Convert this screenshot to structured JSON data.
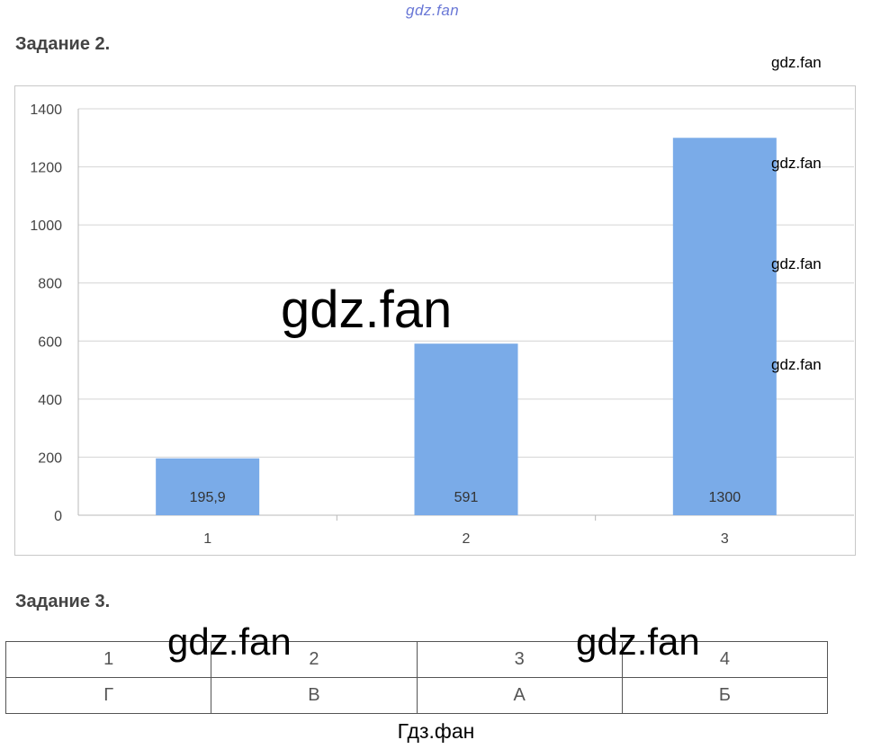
{
  "watermarks": {
    "top": "gdz.fan",
    "right1": "gdz.fan",
    "right2": "gdz.fan",
    "right3": "gdz.fan",
    "right4": "gdz.fan",
    "center": "gdz.fan",
    "table_left": "gdz.fan",
    "table_right": "gdz.fan",
    "footer": "Гдз.фан"
  },
  "task2": {
    "heading": "Задание 2."
  },
  "chart_data": {
    "type": "bar",
    "categories": [
      "1",
      "2",
      "3"
    ],
    "values": [
      195.9,
      591,
      1300
    ],
    "data_labels": [
      "195,9",
      "591",
      "1300"
    ],
    "y_ticks": [
      "0",
      "200",
      "400",
      "600",
      "800",
      "1000",
      "1200",
      "1400"
    ],
    "ylim": [
      0,
      1400
    ],
    "grid": true,
    "legend": "none",
    "bar_color": "#7aabe8",
    "title": "",
    "xlabel": "",
    "ylabel": ""
  },
  "task3": {
    "heading": "Задание 3.",
    "table": {
      "header": [
        "1",
        "2",
        "3",
        "4"
      ],
      "row": [
        "Г",
        "В",
        "А",
        "Б"
      ]
    }
  }
}
